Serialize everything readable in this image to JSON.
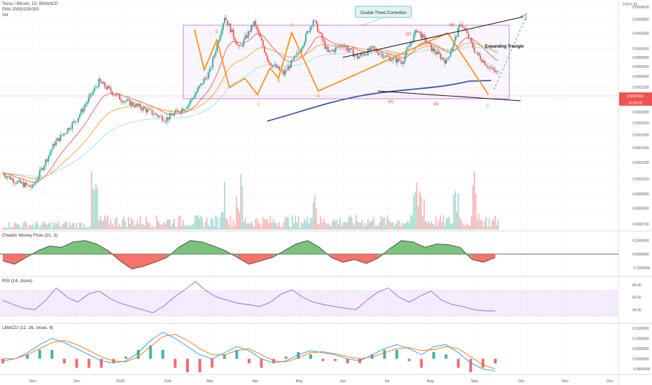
{
  "header": {
    "symbol": "Tezos / Bitcoin, 1D, BINANCE",
    "ema": "EMA 20/50/100/200",
    "vol": "Vol"
  },
  "colors": {
    "up": "#26a69a",
    "down": "#ef5350",
    "ema20": "#e53935",
    "ema50": "#fb8c00",
    "ema100": "#80deea",
    "ema200": "#3f51b5",
    "wave": "#f7931a",
    "red_label": "#e53935",
    "box": "#b36bd6",
    "price_tag": "#ef5350",
    "green_fill": "#4caf50",
    "red_fill": "#f44336",
    "rsi": "#7e57c2",
    "macd": "#2196f3",
    "signal": "#ff6d00"
  },
  "chart_data": [
    {
      "type": "candlestick",
      "title": "Tezos / Bitcoin, 1D, BINANCE",
      "series_note": "EMA 20/50/100/200",
      "y_axis_unit": "BTC",
      "y_axis_ticks": [
        "0.0004200",
        "0.0003800",
        "0.0003400",
        "0.0003000",
        "0.0002800",
        "0.0002600",
        "0.0002400",
        "0.0002200",
        "0.0002000",
        "0.0001800",
        "0.0001650",
        "0.0001500",
        "0.0001350",
        "0.0001200",
        "0.0001050",
        "0.0000930",
        "0.0000830",
        "0.0000730"
      ],
      "top_unit_label": "0 BTC ID",
      "current_price": "0.0002450",
      "countdown": "10:39:28",
      "x_axis_ticks": [
        "Nov",
        "Dec",
        "2020",
        "Feb",
        "Mar",
        "Apr",
        "May",
        "Jun",
        "Jul",
        "Aug",
        "Sep",
        "Oct",
        "Nov",
        "Dec"
      ],
      "close_path": [
        [
          0,
          0.00011
        ],
        [
          10,
          0.000102
        ],
        [
          20,
          9.8e-05
        ],
        [
          35,
          0.00014
        ],
        [
          50,
          0.00017
        ],
        [
          65,
          0.00023
        ],
        [
          80,
          0.0002
        ],
        [
          95,
          0.000185
        ],
        [
          110,
          0.00017
        ],
        [
          125,
          0.00019
        ],
        [
          140,
          0.00025
        ],
        [
          150,
          0.00039
        ],
        [
          160,
          0.0003
        ],
        [
          170,
          0.00037
        ],
        [
          180,
          0.00027
        ],
        [
          190,
          0.000245
        ],
        [
          200,
          0.00029
        ],
        [
          210,
          0.00038
        ],
        [
          220,
          0.00029
        ],
        [
          230,
          0.00031
        ],
        [
          240,
          0.00028
        ],
        [
          250,
          0.0003
        ],
        [
          260,
          0.00028
        ],
        [
          270,
          0.00027
        ],
        [
          280,
          0.00035
        ],
        [
          290,
          0.0003
        ],
        [
          300,
          0.00027
        ],
        [
          310,
          0.00037
        ],
        [
          320,
          0.00029
        ],
        [
          330,
          0.000255
        ],
        [
          335,
          0.000245
        ]
      ],
      "annotations": [
        {
          "text": "Double Three Correction",
          "kind": "callout"
        },
        {
          "text": "Expanding Triangle",
          "kind": "label"
        },
        {
          "text": "B",
          "kind": "wave-orange"
        },
        {
          "text": "A",
          "kind": "wave-orange"
        },
        {
          "text": "C",
          "kind": "wave-orange"
        },
        {
          "text": "A",
          "kind": "wave-orange"
        },
        {
          "text": "B",
          "kind": "wave-orange"
        },
        {
          "text": "C",
          "kind": "wave-orange"
        },
        {
          "text": "A",
          "kind": "wave-orange"
        },
        {
          "text": "C",
          "kind": "wave-orange"
        },
        {
          "text": "(a)",
          "kind": "wave-red"
        },
        {
          "text": "(b)",
          "kind": "wave-red"
        },
        {
          "text": "(c)",
          "kind": "wave-red"
        },
        {
          "text": "(d)",
          "kind": "wave-red"
        },
        {
          "text": "(e)",
          "kind": "wave-red"
        }
      ]
    },
    {
      "type": "area",
      "title": "Chaikin Money Flow (21, 3)",
      "y_axis_ticks": [
        "0.2000000",
        "0.0000000",
        "-0.2000000"
      ],
      "ylim": [
        -0.3,
        0.3
      ],
      "values": [
        -0.1,
        -0.15,
        -0.05,
        0.05,
        0.12,
        0.1,
        0.18,
        0.2,
        0.15,
        0.05,
        -0.1,
        -0.22,
        -0.18,
        -0.12,
        -0.05,
        0.1,
        0.2,
        0.18,
        0.12,
        0.05,
        -0.05,
        -0.15,
        -0.1,
        -0.05,
        0.05,
        0.15,
        0.2,
        0.1,
        -0.05,
        -0.12,
        -0.08,
        -0.14,
        -0.06,
        0.08,
        0.2,
        0.18,
        0.1,
        0.15,
        0.14,
        0.1,
        -0.08,
        -0.12,
        -0.05
      ]
    },
    {
      "type": "line",
      "title": "RSI (14, close)",
      "y_axis_ticks": [
        "80.00",
        "60.00",
        "40.00"
      ],
      "ylim": [
        20,
        90
      ],
      "band": [
        30,
        70
      ],
      "values": [
        55,
        48,
        42,
        40,
        55,
        75,
        60,
        52,
        65,
        70,
        58,
        50,
        45,
        40,
        35,
        45,
        60,
        72,
        85,
        70,
        60,
        55,
        50,
        48,
        45,
        52,
        65,
        72,
        60,
        52,
        48,
        45,
        42,
        40,
        55,
        68,
        75,
        60,
        52,
        62,
        70,
        55,
        48,
        45,
        40,
        38,
        38
      ]
    },
    {
      "type": "line",
      "title": "LMACD (12, 26, close, 9)",
      "y_axis_ticks": [
        "0.1500000",
        "0.1000000",
        "0.0500000",
        "0.0000000",
        "-0.0500000"
      ],
      "ylim": [
        -0.07,
        0.16
      ],
      "macd": [
        -0.01,
        0.0,
        0.03,
        0.07,
        0.1,
        0.08,
        0.05,
        0.02,
        -0.01,
        -0.02,
        -0.01,
        0.03,
        0.09,
        0.13,
        0.1,
        0.06,
        0.02,
        0.0,
        0.03,
        0.06,
        0.04,
        0.0,
        -0.02,
        -0.01,
        0.02,
        0.04,
        0.03,
        0.02,
        0.0,
        -0.01,
        0.02,
        0.05,
        0.07,
        0.05,
        0.02,
        0.06,
        0.07,
        0.03,
        -0.02,
        -0.05,
        -0.06
      ],
      "signal": [
        0.0,
        0.0,
        0.02,
        0.05,
        0.08,
        0.09,
        0.07,
        0.04,
        0.01,
        -0.01,
        -0.015,
        0.01,
        0.06,
        0.11,
        0.12,
        0.09,
        0.05,
        0.02,
        0.02,
        0.04,
        0.05,
        0.02,
        -0.01,
        -0.015,
        0.005,
        0.03,
        0.035,
        0.025,
        0.01,
        0.0,
        0.01,
        0.03,
        0.05,
        0.055,
        0.04,
        0.045,
        0.06,
        0.05,
        0.01,
        -0.03,
        -0.05
      ]
    }
  ]
}
